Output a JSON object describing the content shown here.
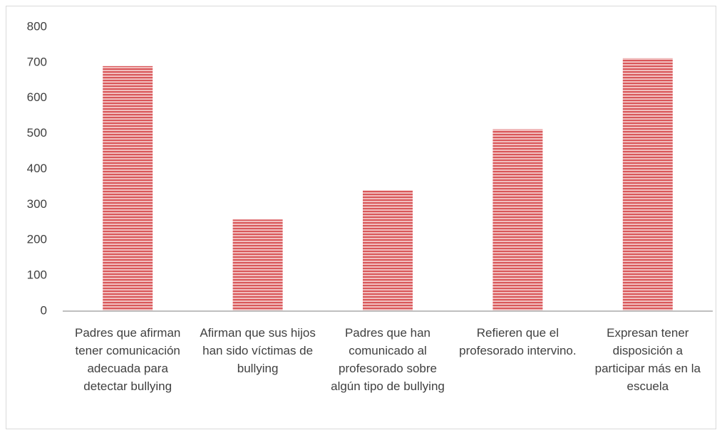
{
  "chart_data": {
    "type": "bar",
    "categories": [
      "Padres que afirman  tener comunicación adecuada para detectar bullying",
      "Afirman que sus hijos han sido víctimas de bullying",
      "Padres que han comunicado al profesorado sobre algún tipo de bullying",
      "Refieren que el profesorado intervino.",
      "Expresan tener disposición a participar más en la escuela"
    ],
    "values": [
      690,
      258,
      340,
      512,
      712
    ],
    "color": "#d9575a",
    "ylim": [
      0,
      800
    ],
    "yticks": [
      0,
      100,
      200,
      300,
      400,
      500,
      600,
      700,
      800
    ],
    "grid": false
  }
}
